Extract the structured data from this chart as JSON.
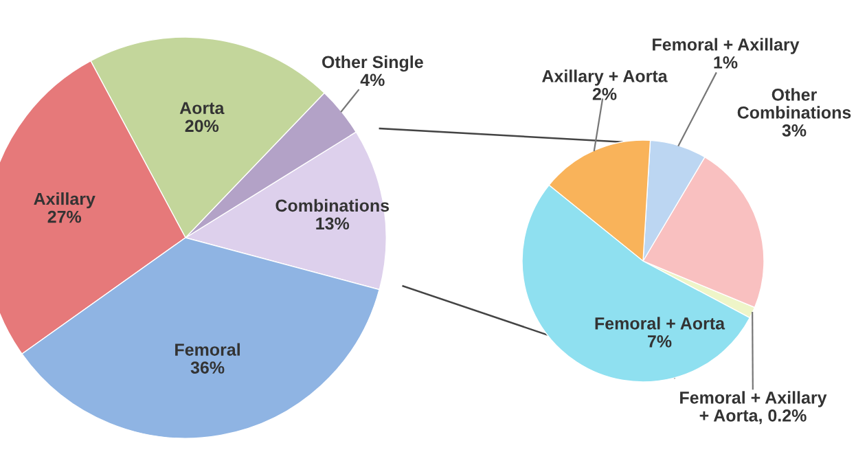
{
  "chart_data": [
    {
      "type": "pie",
      "categories": [
        "Combinations",
        "Other Single",
        "Aorta",
        "Axillary",
        "Femoral"
      ],
      "values": [
        13,
        4,
        20,
        27,
        36
      ],
      "value_labels": [
        "13%",
        "4%",
        "20%",
        "27%",
        "36%"
      ],
      "colors": [
        "#ddd0ec",
        "#b3a2c7",
        "#c3d69b",
        "#e6797a",
        "#8fb4e3"
      ]
    },
    {
      "type": "pie",
      "categories": [
        "Femoral + Axillary\n+ Aorta",
        "Other\nCombinations",
        "Femoral + Axillary",
        "Axillary + Aorta",
        "Femoral + Aorta"
      ],
      "values": [
        0.2,
        3,
        1,
        2,
        7
      ],
      "value_labels": [
        "0.2%",
        "3%",
        "1%",
        "2%",
        "7%"
      ],
      "colors": [
        "#eef5c8",
        "#f9c0c0",
        "#bcd6f2",
        "#f9b35a",
        "#8fe0f0"
      ]
    }
  ]
}
